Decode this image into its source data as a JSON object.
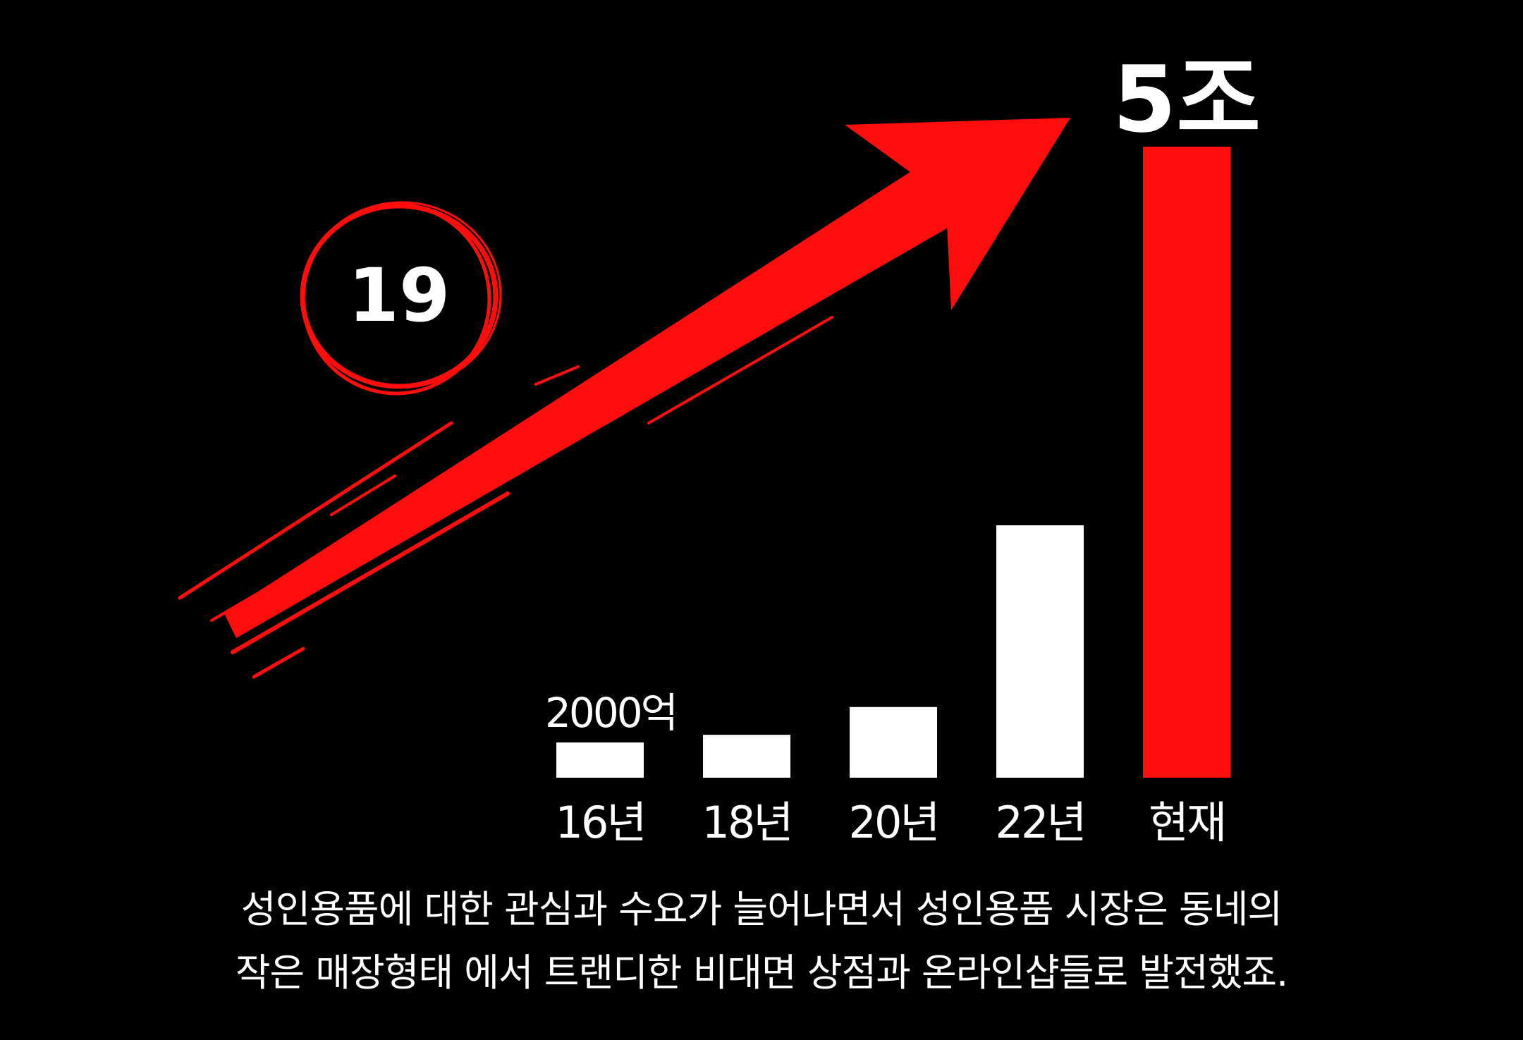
{
  "chart_data": {
    "type": "bar",
    "categories": [
      "16년",
      "18년",
      "20년",
      "22년",
      "현재"
    ],
    "values": [
      2000,
      3400,
      5600,
      20000,
      50000
    ],
    "value_unit": "억",
    "data_labels": [
      "2000억",
      "",
      "",
      "",
      "5조"
    ],
    "highlight_color": "#ff0d0d",
    "bar_color": "#ffffff",
    "ylim": [
      0,
      50000
    ],
    "grid": false
  },
  "badge": {
    "text": "19",
    "color": "#ff0d0d"
  },
  "arrow": {
    "color": "#ff0d0d"
  },
  "caption": {
    "line1": "성인용품에 대한 관심과 수요가 늘어나면서 성인용품 시장은 동네의",
    "line2": "작은 매장형태 에서 트랜디한 비대면 상점과 온라인샵들로 발전했죠."
  }
}
